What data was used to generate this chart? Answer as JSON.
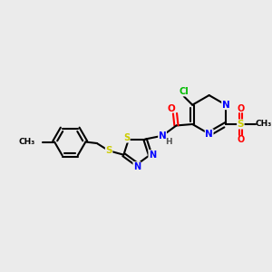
{
  "bg_color": "#ebebeb",
  "bond_color": "#000000",
  "atom_colors": {
    "N": "#0000ff",
    "O": "#ff0000",
    "S": "#cccc00",
    "Cl": "#00bb00",
    "C": "#000000",
    "H": "#555555"
  },
  "figsize": [
    3.0,
    3.0
  ],
  "dpi": 100
}
